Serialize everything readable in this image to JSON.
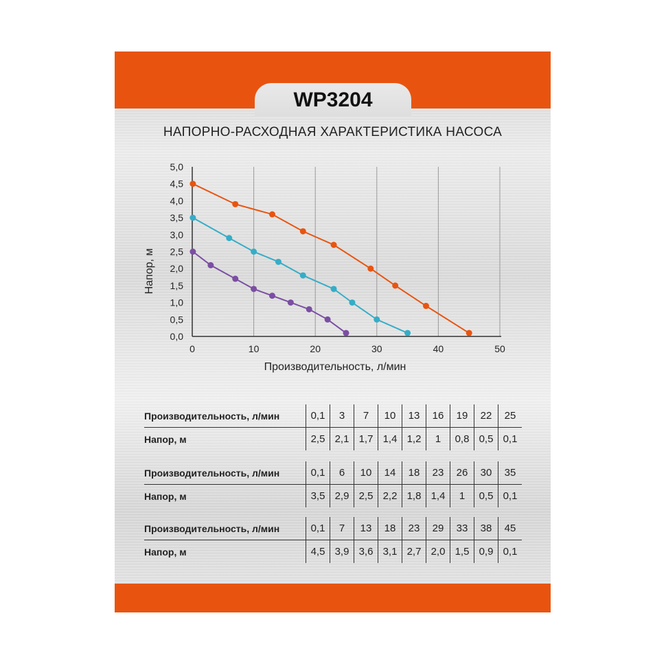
{
  "model": "WP3204",
  "chart_title": "НАПОРНО-РАСХОДНАЯ ХАРАКТЕРИСТИКА НАСОСА",
  "colors": {
    "brand": "#e8540f",
    "series": [
      "#7b4ea3",
      "#35adc7",
      "#e8540f"
    ]
  },
  "chart_data": {
    "type": "line",
    "xlabel": "Производительность, л/мин",
    "ylabel": "Напор, м",
    "xlim": [
      0,
      50
    ],
    "ylim": [
      0,
      5
    ],
    "x_ticks": [
      "0",
      "10",
      "20",
      "30",
      "40",
      "50"
    ],
    "y_ticks": [
      "0,0",
      "0,5",
      "1,0",
      "1,5",
      "2,0",
      "2,5",
      "3,0",
      "3,5",
      "4,0",
      "4,5",
      "5,0"
    ],
    "grid": "vertical",
    "series": [
      {
        "x": [
          0.1,
          3,
          7,
          10,
          13,
          16,
          19,
          22,
          25
        ],
        "y": [
          2.5,
          2.1,
          1.7,
          1.4,
          1.2,
          1.0,
          0.8,
          0.5,
          0.1
        ]
      },
      {
        "x": [
          0.1,
          6,
          10,
          14,
          18,
          23,
          26,
          30,
          35
        ],
        "y": [
          3.5,
          2.9,
          2.5,
          2.2,
          1.8,
          1.4,
          1.0,
          0.5,
          0.1
        ]
      },
      {
        "x": [
          0.1,
          7,
          13,
          18,
          23,
          29,
          33,
          38,
          45
        ],
        "y": [
          4.5,
          3.9,
          3.6,
          3.1,
          2.7,
          2.0,
          1.5,
          0.9,
          0.1
        ]
      }
    ]
  },
  "tables": [
    {
      "flow_label": "Производительность, л/мин",
      "head_label": "Напор, м",
      "flow": [
        "0,1",
        "3",
        "7",
        "10",
        "13",
        "16",
        "19",
        "22",
        "25"
      ],
      "head": [
        "2,5",
        "2,1",
        "1,7",
        "1,4",
        "1,2",
        "1",
        "0,8",
        "0,5",
        "0,1"
      ]
    },
    {
      "flow_label": "Производительность, л/мин",
      "head_label": "Напор, м",
      "flow": [
        "0,1",
        "6",
        "10",
        "14",
        "18",
        "23",
        "26",
        "30",
        "35"
      ],
      "head": [
        "3,5",
        "2,9",
        "2,5",
        "2,2",
        "1,8",
        "1,4",
        "1",
        "0,5",
        "0,1"
      ]
    },
    {
      "flow_label": "Производительность, л/мин",
      "head_label": "Напор, м",
      "flow": [
        "0,1",
        "7",
        "13",
        "18",
        "23",
        "29",
        "33",
        "38",
        "45"
      ],
      "head": [
        "4,5",
        "3,9",
        "3,6",
        "3,1",
        "2,7",
        "2,0",
        "1,5",
        "0,9",
        "0,1"
      ]
    }
  ]
}
